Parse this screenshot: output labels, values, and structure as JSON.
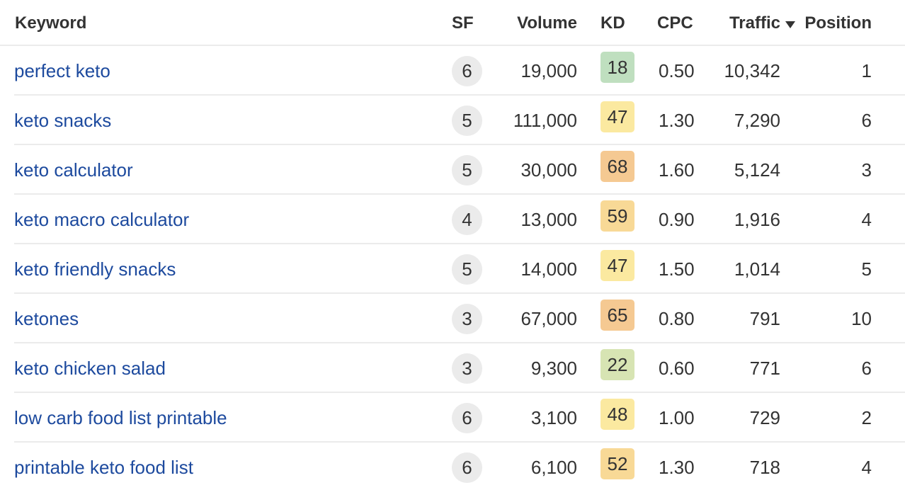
{
  "table": {
    "columns": {
      "keyword": "Keyword",
      "sf": "SF",
      "volume": "Volume",
      "kd": "KD",
      "cpc": "CPC",
      "traffic": "Traffic",
      "position": "Position"
    },
    "sort": {
      "column": "Traffic",
      "direction": "desc",
      "icon": "sort-desc-triangle"
    },
    "kd_colors": {
      "very_easy": "#bfdfbf",
      "easy": "#d7e4b3",
      "medium": "#fbe9a0",
      "medium_hard": "#f8d996",
      "hard": "#f5c992"
    },
    "rows": [
      {
        "keyword": "perfect keto",
        "sf": "6",
        "volume": "19,000",
        "kd": "18",
        "kd_color": "#bfdfbf",
        "cpc": "0.50",
        "traffic": "10,342",
        "position": "1"
      },
      {
        "keyword": "keto snacks",
        "sf": "5",
        "volume": "111,000",
        "kd": "47",
        "kd_color": "#fbe9a0",
        "cpc": "1.30",
        "traffic": "7,290",
        "position": "6"
      },
      {
        "keyword": "keto calculator",
        "sf": "5",
        "volume": "30,000",
        "kd": "68",
        "kd_color": "#f5c992",
        "cpc": "1.60",
        "traffic": "5,124",
        "position": "3"
      },
      {
        "keyword": "keto macro calculator",
        "sf": "4",
        "volume": "13,000",
        "kd": "59",
        "kd_color": "#f8d996",
        "cpc": "0.90",
        "traffic": "1,916",
        "position": "4"
      },
      {
        "keyword": "keto friendly snacks",
        "sf": "5",
        "volume": "14,000",
        "kd": "47",
        "kd_color": "#fbe9a0",
        "cpc": "1.50",
        "traffic": "1,014",
        "position": "5"
      },
      {
        "keyword": "ketones",
        "sf": "3",
        "volume": "67,000",
        "kd": "65",
        "kd_color": "#f5c992",
        "cpc": "0.80",
        "traffic": "791",
        "position": "10"
      },
      {
        "keyword": "keto chicken salad",
        "sf": "3",
        "volume": "9,300",
        "kd": "22",
        "kd_color": "#d7e4b3",
        "cpc": "0.60",
        "traffic": "771",
        "position": "6"
      },
      {
        "keyword": "low carb food list printable",
        "sf": "6",
        "volume": "3,100",
        "kd": "48",
        "kd_color": "#fbe9a0",
        "cpc": "1.00",
        "traffic": "729",
        "position": "2"
      },
      {
        "keyword": "printable keto food list",
        "sf": "6",
        "volume": "6,100",
        "kd": "52",
        "kd_color": "#f8d996",
        "cpc": "1.30",
        "traffic": "718",
        "position": "4"
      }
    ]
  }
}
